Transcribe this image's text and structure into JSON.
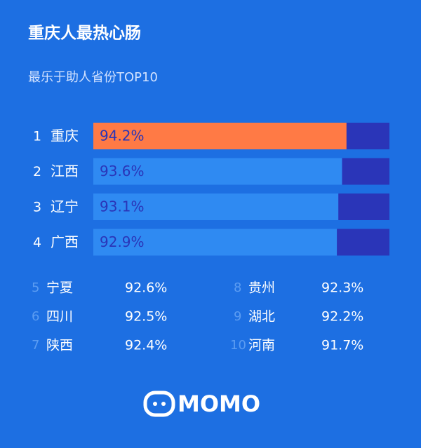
{
  "header": {
    "title": "重庆人最热心肠",
    "subtitle": "最乐于助人省份TOP10"
  },
  "chart_data": {
    "type": "bar",
    "orientation": "horizontal",
    "ranks": [
      "1",
      "2",
      "3",
      "4"
    ],
    "categories": [
      "重庆",
      "江西",
      "辽宁",
      "广西"
    ],
    "values": [
      94.2,
      93.6,
      93.1,
      92.9
    ],
    "value_labels": [
      "94.2%",
      "93.6%",
      "93.1%",
      "92.9%"
    ],
    "colors": [
      "#ff7a45",
      "#2f8af2",
      "#2f8af2",
      "#2f8af2"
    ],
    "track_color": "#2a35b8",
    "xlim": [
      60,
      100
    ]
  },
  "list": {
    "ranks": [
      "5",
      "6",
      "7",
      "8",
      "9",
      "10"
    ],
    "names": [
      "宁夏",
      "四川",
      "陕西",
      "贵州",
      "湖北",
      "河南"
    ],
    "values": [
      "92.6%",
      "92.5%",
      "92.4%",
      "92.3%",
      "92.2%",
      "91.7%"
    ]
  },
  "footer": {
    "logo": "MOMO"
  }
}
